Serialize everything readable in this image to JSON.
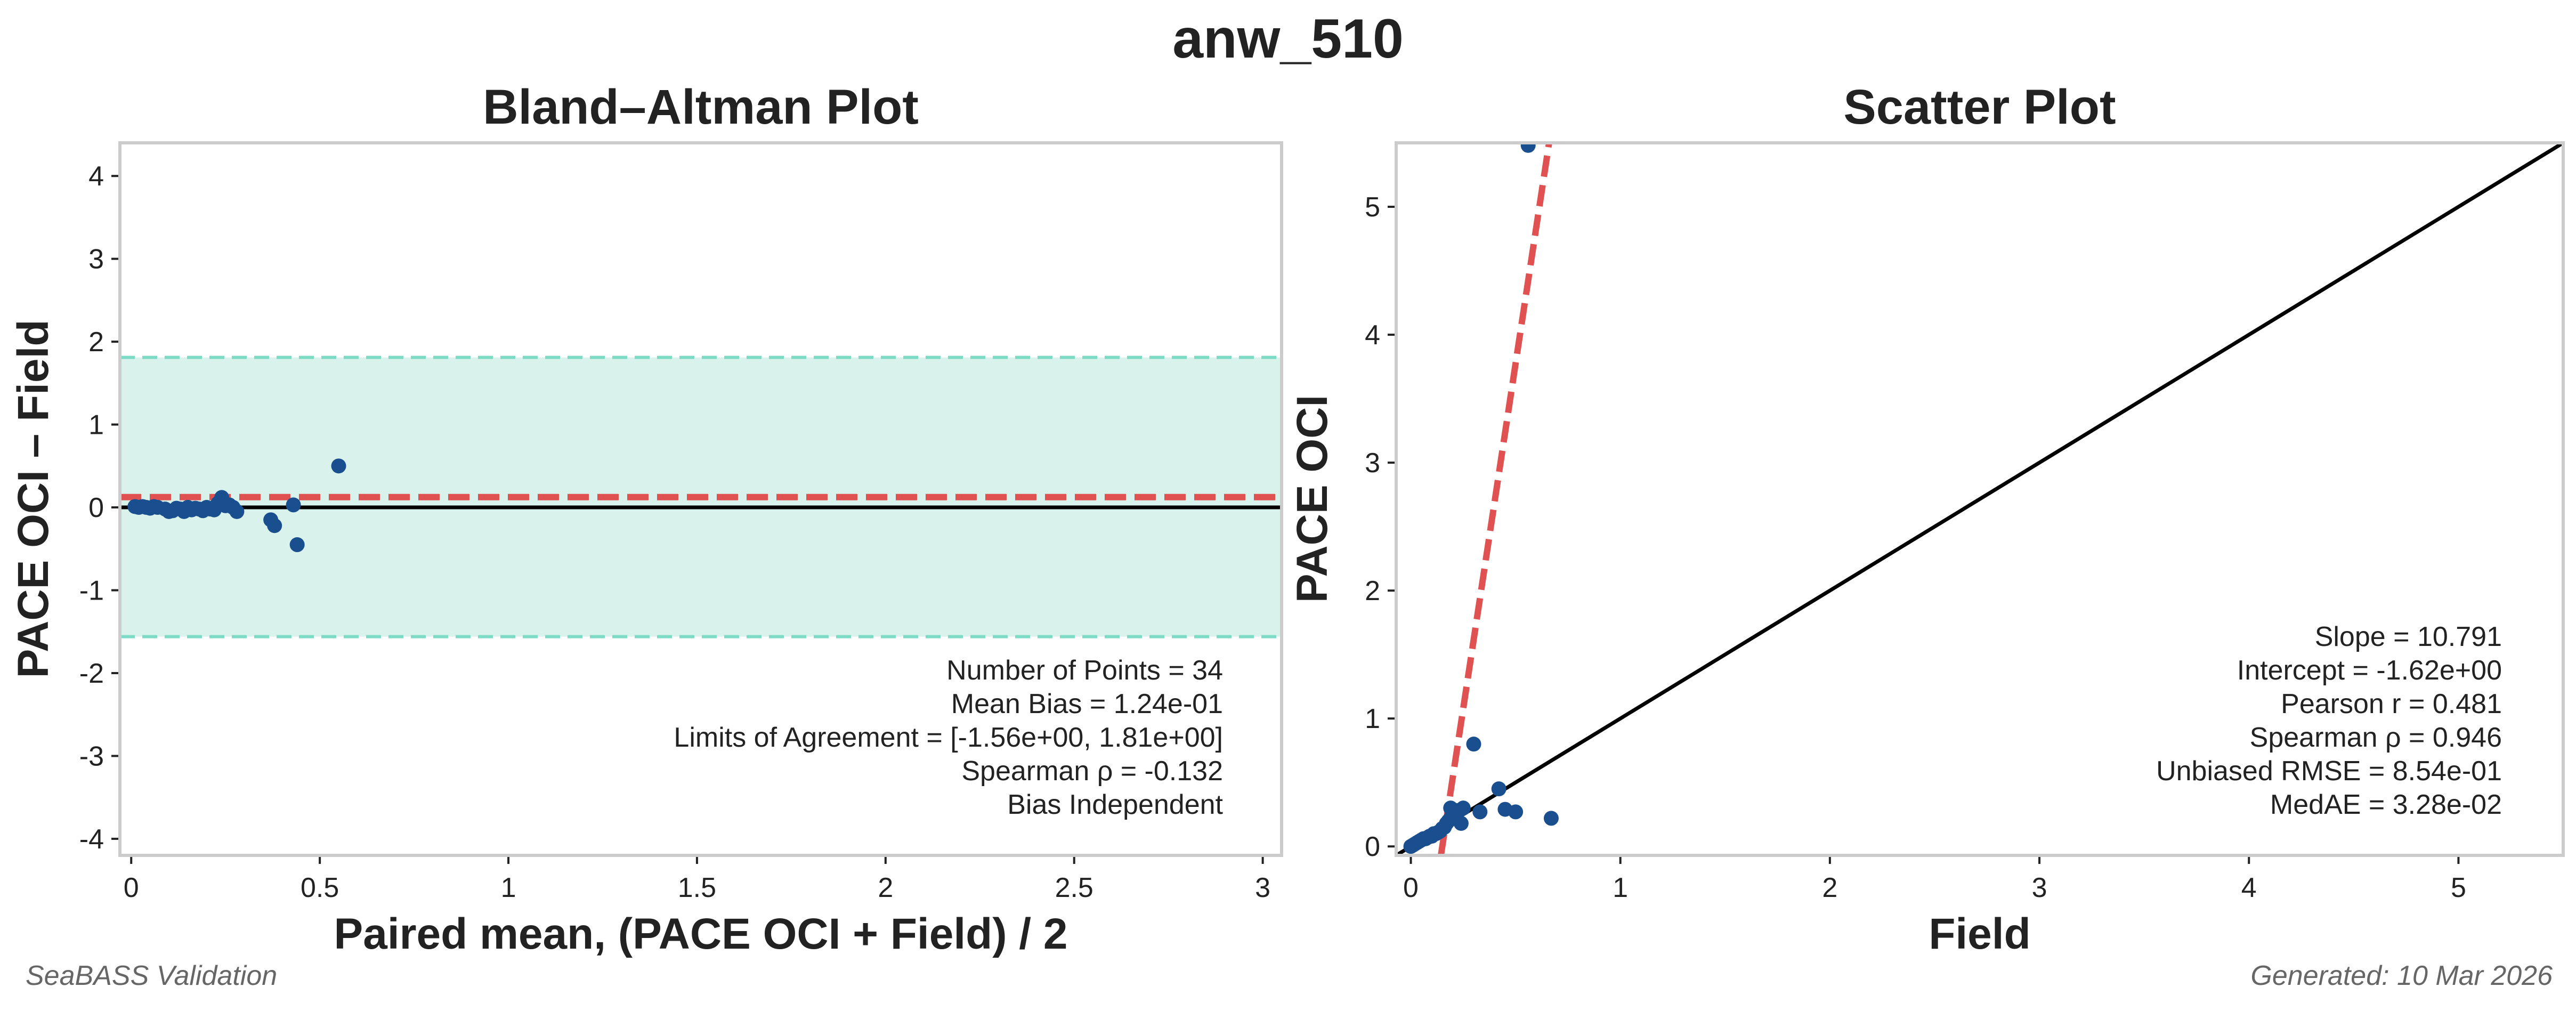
{
  "suptitle": "anw_510",
  "footer": {
    "left": "SeaBASS Validation",
    "right": "Generated: 10 Mar 2026"
  },
  "colors": {
    "points": "#1a4f8f",
    "bias_line": "#e05252",
    "loa_band": "#d9f3ec",
    "loa_line": "#7ddbc5",
    "zero_line": "#000000",
    "axes_frame": "#cccccc"
  },
  "chart_data": [
    {
      "type": "scatter",
      "title": "Bland–Altman Plot",
      "xlabel": "Paired mean, (PACE OCI + Field) / 2",
      "ylabel": "PACE OCI – Field",
      "xlim": [
        -0.03,
        3.05
      ],
      "ylim": [
        -4.2,
        4.4
      ],
      "xticks": [
        0,
        0.5,
        1,
        1.5,
        2,
        2.5,
        3
      ],
      "xtick_labels": [
        "0",
        "0.5",
        "1",
        "1.5",
        "2",
        "2.5",
        "3"
      ],
      "yticks": [
        -4,
        -3,
        -2,
        -1,
        0,
        1,
        2,
        3,
        4
      ],
      "ytick_labels": [
        "-4",
        "-3",
        "-2",
        "-1",
        "0",
        "1",
        "2",
        "3",
        "4"
      ],
      "mean_bias": 0.124,
      "limits_of_agreement": [
        -1.56,
        1.81
      ],
      "points": [
        [
          0.01,
          0.01
        ],
        [
          0.02,
          0.0
        ],
        [
          0.03,
          0.01
        ],
        [
          0.05,
          -0.01
        ],
        [
          0.07,
          0.0
        ],
        [
          0.09,
          -0.02
        ],
        [
          0.1,
          -0.05
        ],
        [
          0.11,
          -0.04
        ],
        [
          0.13,
          -0.02
        ],
        [
          0.14,
          -0.05
        ],
        [
          0.15,
          0.0
        ],
        [
          0.16,
          -0.03
        ],
        [
          0.18,
          -0.02
        ],
        [
          0.19,
          -0.04
        ],
        [
          0.2,
          0.0
        ],
        [
          0.21,
          -0.02
        ],
        [
          0.22,
          -0.03
        ],
        [
          0.23,
          0.05
        ],
        [
          0.24,
          0.12
        ],
        [
          0.25,
          0.02
        ],
        [
          0.26,
          0.03
        ],
        [
          0.27,
          0.0
        ],
        [
          0.28,
          -0.05
        ],
        [
          0.37,
          -0.15
        ],
        [
          0.38,
          -0.22
        ],
        [
          0.43,
          0.03
        ],
        [
          0.44,
          -0.45
        ],
        [
          0.55,
          0.5
        ],
        [
          0.04,
          0.0
        ],
        [
          0.06,
          0.01
        ],
        [
          0.12,
          -0.01
        ],
        [
          0.17,
          -0.01
        ],
        [
          0.2,
          -0.01
        ],
        [
          0.22,
          0.0
        ]
      ],
      "stats": [
        "Number of Points = 34",
        "Mean Bias = 1.24e-01",
        "Limits of Agreement = [-1.56e+00, 1.81e+00]",
        "Spearman ρ = -0.132",
        "Bias Independent"
      ]
    },
    {
      "type": "scatter",
      "title": "Scatter Plot",
      "xlabel": "Field",
      "ylabel": "PACE OCI",
      "xlim": [
        -0.07,
        5.5
      ],
      "ylim": [
        -0.07,
        5.5
      ],
      "xticks": [
        0,
        1,
        2,
        3,
        4,
        5
      ],
      "xtick_labels": [
        "0",
        "1",
        "2",
        "3",
        "4",
        "5"
      ],
      "yticks": [
        0,
        1,
        2,
        3,
        4,
        5
      ],
      "ytick_labels": [
        "0",
        "1",
        "2",
        "3",
        "4",
        "5"
      ],
      "one_to_one": true,
      "regression": {
        "slope": 10.791,
        "intercept": -1.62
      },
      "points": [
        [
          0.0,
          0.0
        ],
        [
          0.01,
          0.01
        ],
        [
          0.02,
          0.02
        ],
        [
          0.03,
          0.03
        ],
        [
          0.04,
          0.04
        ],
        [
          0.05,
          0.05
        ],
        [
          0.06,
          0.06
        ],
        [
          0.07,
          0.06
        ],
        [
          0.08,
          0.07
        ],
        [
          0.09,
          0.08
        ],
        [
          0.1,
          0.08
        ],
        [
          0.11,
          0.1
        ],
        [
          0.12,
          0.1
        ],
        [
          0.13,
          0.11
        ],
        [
          0.14,
          0.12
        ],
        [
          0.15,
          0.14
        ],
        [
          0.16,
          0.15
        ],
        [
          0.17,
          0.18
        ],
        [
          0.18,
          0.2
        ],
        [
          0.19,
          0.22
        ],
        [
          0.2,
          0.25
        ],
        [
          0.21,
          0.27
        ],
        [
          0.22,
          0.28
        ],
        [
          0.23,
          0.28
        ],
        [
          0.24,
          0.18
        ],
        [
          0.19,
          0.3
        ],
        [
          0.25,
          0.3
        ],
        [
          0.3,
          0.8
        ],
        [
          0.33,
          0.27
        ],
        [
          0.42,
          0.45
        ],
        [
          0.45,
          0.29
        ],
        [
          0.5,
          0.27
        ],
        [
          0.67,
          0.22
        ],
        [
          0.56,
          5.48
        ]
      ],
      "stats": [
        "Slope = 10.791",
        "Intercept = -1.62e+00",
        "Pearson r = 0.481",
        "Spearman ρ = 0.946",
        "Unbiased RMSE = 8.54e-01",
        "MedAE = 3.28e-02"
      ]
    }
  ]
}
